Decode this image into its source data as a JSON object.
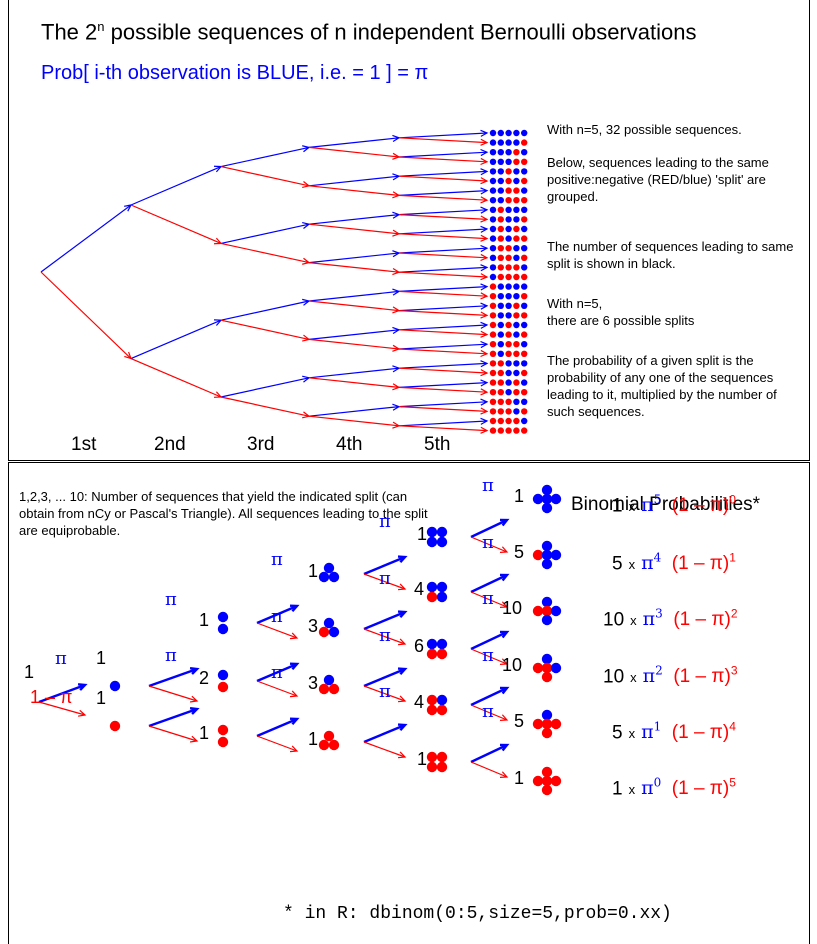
{
  "top": {
    "title_prefix": "The 2",
    "title_exp": "n",
    "title_suffix": " possible sequences of n independent Bernoulli observations",
    "subtitle": "Prob[ i-th observation is BLUE, i.e. = 1 ] = π",
    "stage_labels": [
      "1st",
      "2nd",
      "3rd",
      "4th",
      "5th"
    ],
    "notes": [
      "With n=5, 32 possible sequences.",
      "Below, sequences leading to the same positive:negative (RED/blue) 'split' are grouped.",
      "The number of sequences leading to same split is shown in black.",
      "With n=5,\nthere are 6 possible splits",
      "The probability of a given split is the probability of any one of the sequences leading to it, multiplied by the number of such sequences."
    ]
  },
  "bottom": {
    "note": "1,2,3, ... 10: Number of sequences that yield the indicated split (can obtain from nCy or Pascal's Triangle). All sequences leading to the split are equiprobable.",
    "title": "Binomial Probabilities*",
    "r_command": "* in R: dbinom(0:5,size=5,prob=0.xx)",
    "pi_symbol": "π",
    "one_minus_pi": "1 – π",
    "root_label": "1",
    "levels": [
      [
        "1",
        "1"
      ],
      [
        "1",
        "2",
        "1"
      ],
      [
        "1",
        "3",
        "3",
        "1"
      ],
      [
        "1",
        "4",
        "6",
        "4",
        "1"
      ],
      [
        "1",
        "5",
        "10",
        "10",
        "5",
        "1"
      ]
    ],
    "formulas": [
      {
        "coef": "1",
        "pi_exp": "5",
        "q_exp": "0"
      },
      {
        "coef": "5",
        "pi_exp": "4",
        "q_exp": "1"
      },
      {
        "coef": "10",
        "pi_exp": "3",
        "q_exp": "2"
      },
      {
        "coef": "10",
        "pi_exp": "2",
        "q_exp": "3"
      },
      {
        "coef": "5",
        "pi_exp": "1",
        "q_exp": "4"
      },
      {
        "coef": "1",
        "pi_exp": "0",
        "q_exp": "5"
      }
    ],
    "times": "x",
    "pi_term": "π",
    "q_term": "(1 – π)"
  },
  "colors": {
    "blue": "#0000ff",
    "red": "#ff0000",
    "black": "#000000"
  }
}
